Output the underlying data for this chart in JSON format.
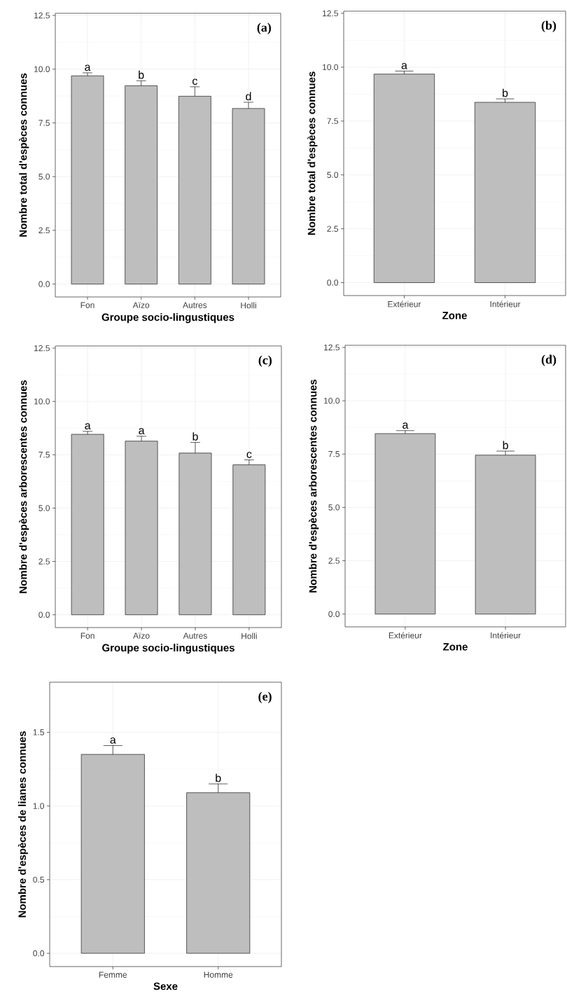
{
  "chart_data": [
    {
      "type": "bar",
      "categories": [
        "Fon",
        "Aïzo",
        "Autres",
        "Holli"
      ],
      "values": [
        9.69,
        9.23,
        8.74,
        8.17
      ],
      "color": "#bebebe",
      "errors": [
        [
          9.69,
          9.83
        ],
        [
          9.23,
          9.46
        ],
        [
          8.74,
          9.18
        ],
        [
          8.17,
          8.46
        ]
      ],
      "xlabel": "Groupe socio-lingustiques",
      "ylabel": "Nombre total d'espèces connues",
      "ylim": [
        -0.6,
        12.6
      ],
      "yticks": [
        {
          "value": 0,
          "label": "0.0"
        },
        {
          "value": 2.5,
          "label": "2.5"
        },
        {
          "value": 5,
          "label": "5.0"
        },
        {
          "value": 7.5,
          "label": "7.5"
        },
        {
          "value": 10,
          "label": "10.0"
        },
        {
          "value": 12.5,
          "label": "12.5"
        }
      ],
      "grid": true,
      "annotations": [
        "(a)",
        {
          "text": "a",
          "x": "Fon",
          "y": 9.83
        },
        {
          "text": "b",
          "x": "Aïzo",
          "y": 9.46
        },
        {
          "text": "c",
          "x": "Autres",
          "y": 9.18
        },
        {
          "text": "d",
          "x": "Holli",
          "y": 8.46
        }
      ]
    },
    {
      "type": "bar",
      "categories": [
        "Extérieur",
        "Intérieur"
      ],
      "values": [
        9.68,
        8.37
      ],
      "color": "#bebebe",
      "errors": [
        [
          9.68,
          9.82
        ],
        [
          8.37,
          8.53
        ]
      ],
      "xlabel": "Zone",
      "ylabel": "Nombre total d'espèces connues",
      "ylim": [
        -0.6,
        12.6
      ],
      "yticks": [
        {
          "value": 0,
          "label": "0.0"
        },
        {
          "value": 2.5,
          "label": "2.5"
        },
        {
          "value": 5,
          "label": "5.0"
        },
        {
          "value": 7.5,
          "label": "7.5"
        },
        {
          "value": 10,
          "label": "10.0"
        },
        {
          "value": 12.5,
          "label": "12.5"
        }
      ],
      "grid": true,
      "annotations": [
        "(b)",
        {
          "text": "a",
          "x": "Extérieur",
          "y": 9.82
        },
        {
          "text": "b",
          "x": "Intérieur",
          "y": 8.53
        }
      ]
    },
    {
      "type": "bar",
      "categories": [
        "Fon",
        "Aïzo",
        "Autres",
        "Holli"
      ],
      "values": [
        8.46,
        8.14,
        7.58,
        7.03
      ],
      "color": "#bebebe",
      "errors": [
        [
          8.46,
          8.6
        ],
        [
          8.14,
          8.37
        ],
        [
          7.58,
          8.08
        ],
        [
          7.03,
          7.26
        ]
      ],
      "xlabel": "Groupe socio-lingustiques",
      "ylabel": "Nombre d'espèces arborescentes connues",
      "ylim": [
        -0.6,
        12.6
      ],
      "yticks": [
        {
          "value": 0,
          "label": "0.0"
        },
        {
          "value": 2.5,
          "label": "2.5"
        },
        {
          "value": 5,
          "label": "5.0"
        },
        {
          "value": 7.5,
          "label": "7.5"
        },
        {
          "value": 10,
          "label": "10.0"
        },
        {
          "value": 12.5,
          "label": "12.5"
        }
      ],
      "grid": true,
      "annotations": [
        "(c)",
        {
          "text": "a",
          "x": "Fon",
          "y": 8.6
        },
        {
          "text": "a",
          "x": "Aïzo",
          "y": 8.37
        },
        {
          "text": "b",
          "x": "Autres",
          "y": 8.08
        },
        {
          "text": "c",
          "x": "Holli",
          "y": 7.26
        }
      ]
    },
    {
      "type": "bar",
      "categories": [
        "Extérieur",
        "Intérieur"
      ],
      "values": [
        8.46,
        7.45
      ],
      "color": "#bebebe",
      "errors": [
        [
          8.46,
          8.6
        ],
        [
          7.45,
          7.64
        ]
      ],
      "xlabel": "Zone",
      "ylabel": "Nombre d'espèces arborescentes connues",
      "ylim": [
        -0.6,
        12.6
      ],
      "yticks": [
        {
          "value": 0,
          "label": "0.0"
        },
        {
          "value": 2.5,
          "label": "2.5"
        },
        {
          "value": 5,
          "label": "5.0"
        },
        {
          "value": 7.5,
          "label": "7.5"
        },
        {
          "value": 10,
          "label": "10.0"
        },
        {
          "value": 12.5,
          "label": "12.5"
        }
      ],
      "grid": true,
      "annotations": [
        "(d)",
        {
          "text": "a",
          "x": "Extérieur",
          "y": 8.6
        },
        {
          "text": "b",
          "x": "Intérieur",
          "y": 7.64
        }
      ]
    },
    {
      "type": "bar",
      "categories": [
        "Femme",
        "Homme"
      ],
      "values": [
        1.35,
        1.09
      ],
      "color": "#bebebe",
      "errors": [
        [
          1.35,
          1.41
        ],
        [
          1.09,
          1.15
        ]
      ],
      "xlabel": "Sexe",
      "ylabel": "Nombre d'espèces de lianes connues",
      "ylim": [
        -0.09,
        1.84
      ],
      "yticks": [
        {
          "value": 0,
          "label": "0.0"
        },
        {
          "value": 0.5,
          "label": "0.5"
        },
        {
          "value": 1,
          "label": "1.0"
        },
        {
          "value": 1.5,
          "label": "1.5"
        }
      ],
      "grid": true,
      "annotations": [
        "(e)",
        {
          "text": "a",
          "x": "Femme",
          "y": 1.41
        },
        {
          "text": "b",
          "x": "Homme",
          "y": 1.15
        }
      ]
    }
  ]
}
